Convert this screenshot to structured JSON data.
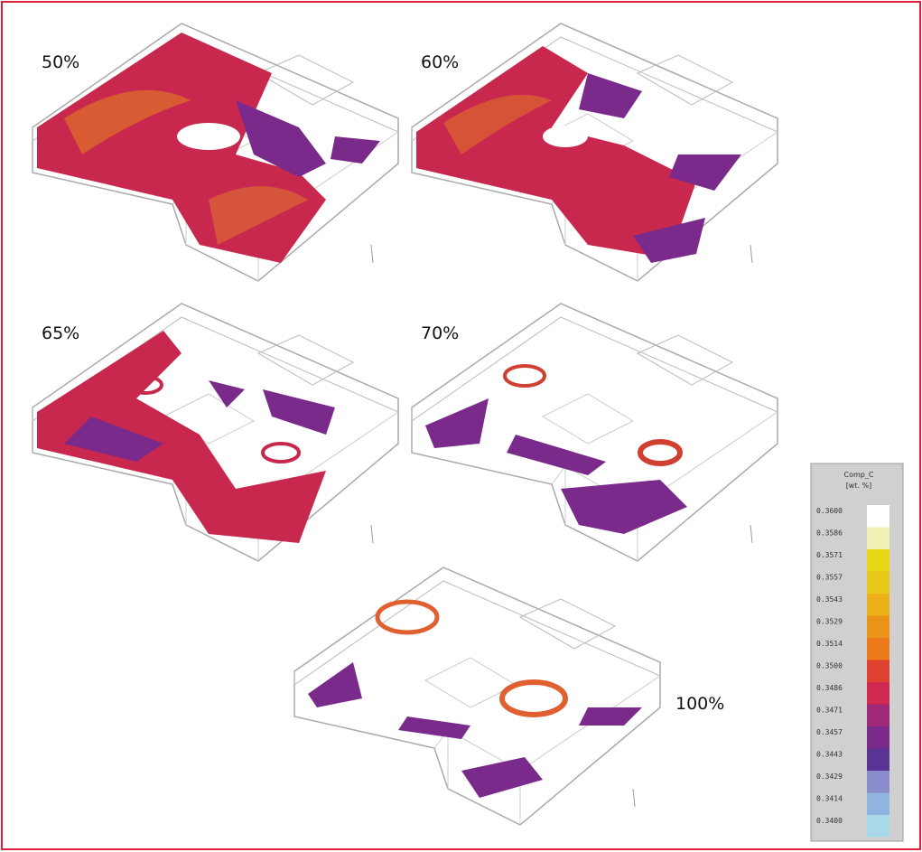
{
  "panels": [
    {
      "label": "50%"
    },
    {
      "label": "60%"
    },
    {
      "label": "65%"
    },
    {
      "label": "70%"
    },
    {
      "label": "100%"
    }
  ],
  "legend": {
    "title": "Comp_C",
    "unit": "[wt. %]",
    "labels": [
      "0.3600",
      "0.3586",
      "0.3571",
      "0.3557",
      "0.3543",
      "0.3529",
      "0.3514",
      "0.3500",
      "0.3486",
      "0.3471",
      "0.3457",
      "0.3443",
      "0.3429",
      "0.3414",
      "0.3400"
    ],
    "colors": [
      "#ffffff",
      "#f2f2b8",
      "#e8d818",
      "#e8c818",
      "#ecb018",
      "#ec9418",
      "#ec7a18",
      "#e04030",
      "#d02a50",
      "#a02878",
      "#7a2a8a",
      "#5a3494",
      "#8a8ccc",
      "#90b4e0",
      "#a8d8ea"
    ]
  }
}
